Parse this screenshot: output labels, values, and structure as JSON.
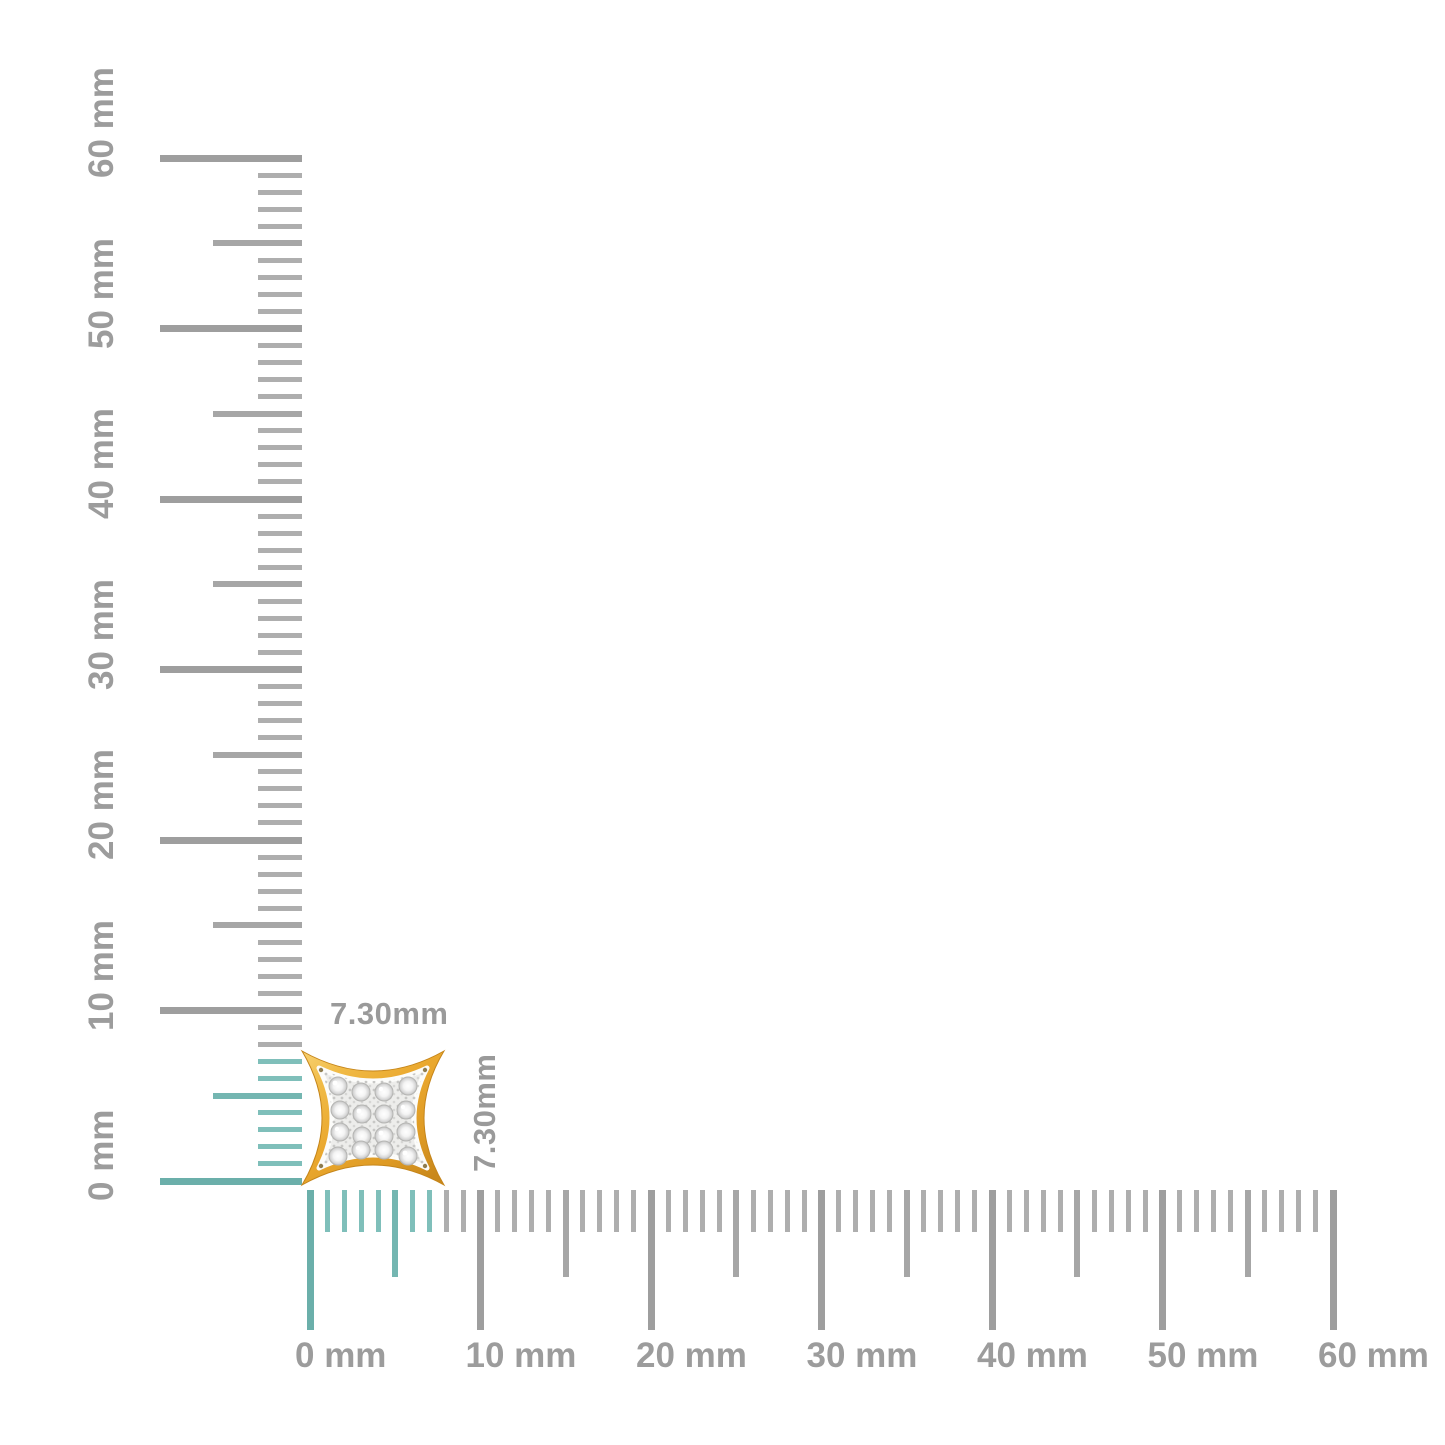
{
  "scene": {
    "background": "#FFFFFF",
    "description": "Gold kite-square pave diamond stud earring shown to scale against millimeter rulers"
  },
  "measurement": {
    "width_label": "7.30mm",
    "height_label": "7.30mm"
  },
  "vertical_ruler": {
    "unit": "mm",
    "min_mm": 0,
    "max_mm": 60,
    "labels": [
      "0 mm",
      "10 mm",
      "20 mm",
      "30 mm",
      "40 mm",
      "50 mm",
      "60 mm"
    ]
  },
  "horizontal_ruler": {
    "unit": "mm",
    "min_mm": 0,
    "max_mm": 60,
    "labels": [
      "0 mm",
      "10 mm",
      "20 mm",
      "30 mm",
      "40 mm",
      "50 mm",
      "60 mm"
    ]
  },
  "colors": {
    "tick_gray": "#A6A6A6",
    "label_gray": "#9C9C9C",
    "accent_teal": "#74B6B1",
    "gold": "#E9A92F",
    "pave_silver": "#EDEDEB"
  }
}
